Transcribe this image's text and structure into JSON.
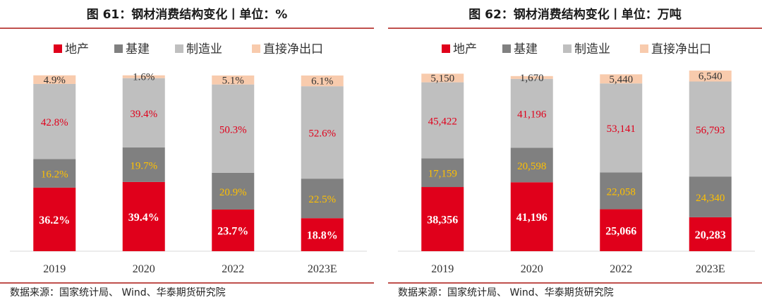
{
  "colors": {
    "property": "#e0001b",
    "construction": "#808080",
    "manufacturing": "#bfbfbf",
    "net_export": "#f8cbad",
    "label_white": "#ffffff",
    "label_red": "#e0001b",
    "label_gold": "#ffc000",
    "label_dark": "#333333",
    "rule": "#c0504d"
  },
  "legend": [
    "地产",
    "基建",
    "制造业",
    "直接净出口"
  ],
  "source": "数据来源：国家统计局、 Wind、华泰期货研究院",
  "chart_data": [
    {
      "type": "bar",
      "stacked": true,
      "title": "图 61：钢材消费结构变化丨单位：%",
      "categories": [
        "2019",
        "2020",
        "2022",
        "2023E"
      ],
      "series": [
        {
          "name": "地产",
          "values": [
            36.2,
            39.4,
            23.7,
            18.8
          ],
          "labels": [
            "36.2%",
            "39.4%",
            "23.7%",
            "18.8%"
          ]
        },
        {
          "name": "基建",
          "values": [
            16.2,
            19.7,
            20.9,
            22.5
          ],
          "labels": [
            "16.2%",
            "19.7%",
            "20.9%",
            "22.5%"
          ]
        },
        {
          "name": "制造业",
          "values": [
            42.8,
            39.4,
            50.3,
            52.6
          ],
          "labels": [
            "42.8%",
            "39.4%",
            "50.3%",
            "52.6%"
          ]
        },
        {
          "name": "直接净出口",
          "values": [
            4.9,
            1.6,
            5.1,
            6.1
          ],
          "labels": [
            "4.9%",
            "1.6%",
            "5.1%",
            "6.1%"
          ]
        }
      ],
      "ylim": [
        0,
        100
      ],
      "legend_position": "top"
    },
    {
      "type": "bar",
      "stacked": true,
      "title": "图 62：钢材消费结构变化丨单位：万吨",
      "categories": [
        "2019",
        "2020",
        "2022",
        "2023E"
      ],
      "series": [
        {
          "name": "地产",
          "values": [
            38356,
            41196,
            25066,
            20283
          ],
          "labels": [
            "38,356",
            "41,196",
            "25,066",
            "20,283"
          ]
        },
        {
          "name": "基建",
          "values": [
            17159,
            20598,
            22058,
            24340
          ],
          "labels": [
            "17,159",
            "20,598",
            "22,058",
            "24,340"
          ]
        },
        {
          "name": "制造业",
          "values": [
            45422,
            41196,
            53141,
            56793
          ],
          "labels": [
            "45,422",
            "41,196",
            "53,141",
            "56,793"
          ]
        },
        {
          "name": "直接净出口",
          "values": [
            5150,
            1670,
            5440,
            6540
          ],
          "labels": [
            "5,150",
            "1,670",
            "5,440",
            "6,540"
          ]
        }
      ],
      "ylim": [
        0,
        105000
      ],
      "legend_position": "top"
    }
  ]
}
